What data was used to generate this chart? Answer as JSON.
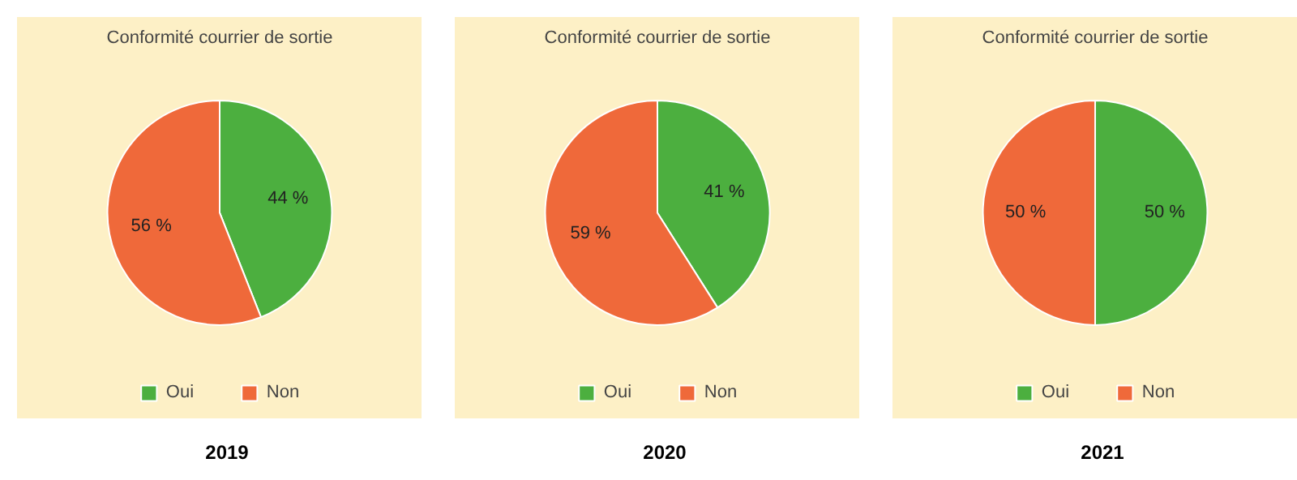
{
  "chart_data": [
    {
      "type": "pie",
      "title": "Conformité courrier de sortie",
      "xlabel": "2019",
      "categories": [
        "Oui",
        "Non"
      ],
      "values": [
        44,
        56
      ],
      "value_labels": [
        "44 %",
        "56 %"
      ],
      "colors": [
        "#4caf3f",
        "#ef693a"
      ],
      "legend": "bottom"
    },
    {
      "type": "pie",
      "title": "Conformité courrier de sortie",
      "xlabel": "2020",
      "categories": [
        "Oui",
        "Non"
      ],
      "values": [
        41,
        59
      ],
      "value_labels": [
        "41 %",
        "59 %"
      ],
      "colors": [
        "#4caf3f",
        "#ef693a"
      ],
      "legend": "bottom"
    },
    {
      "type": "pie",
      "title": "Conformité courrier de sortie",
      "xlabel": "2021",
      "categories": [
        "Oui",
        "Non"
      ],
      "values": [
        50,
        50
      ],
      "value_labels": [
        "50 %",
        "50 %"
      ],
      "colors": [
        "#4caf3f",
        "#ef693a"
      ],
      "legend": "bottom"
    }
  ]
}
